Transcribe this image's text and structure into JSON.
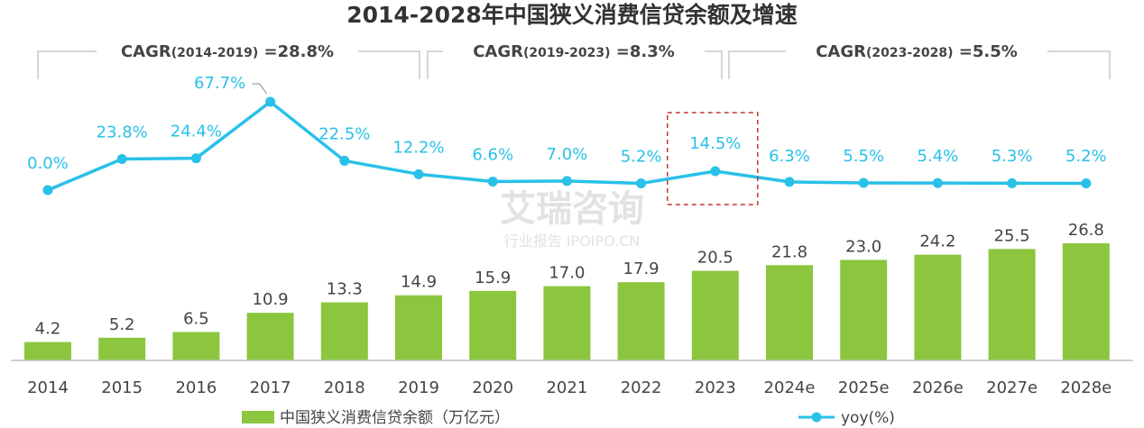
{
  "chart_data": {
    "type": "bar",
    "title": "2014-2028年中国狭义消费信贷余额及增速",
    "categories": [
      "2014",
      "2015",
      "2016",
      "2017",
      "2018",
      "2019",
      "2020",
      "2021",
      "2022",
      "2023",
      "2024e",
      "2025e",
      "2026e",
      "2027e",
      "2028e"
    ],
    "series": [
      {
        "name": "中国狭义消费信贷余额（万亿元）",
        "type": "bar",
        "values": [
          4.2,
          5.2,
          6.5,
          10.9,
          13.3,
          14.9,
          15.9,
          17.0,
          17.9,
          20.5,
          21.8,
          23.0,
          24.2,
          25.5,
          26.8
        ],
        "labels": [
          "4.2",
          "5.2",
          "6.5",
          "10.9",
          "13.3",
          "14.9",
          "15.9",
          "17.0",
          "17.9",
          "20.5",
          "21.8",
          "23.0",
          "24.2",
          "25.5",
          "26.8"
        ],
        "color": "#8cc63f"
      },
      {
        "name": "yoy(%)",
        "type": "line",
        "values": [
          0.0,
          23.8,
          24.4,
          67.7,
          22.5,
          12.2,
          6.6,
          7.0,
          5.2,
          14.5,
          6.3,
          5.5,
          5.4,
          5.3,
          5.2
        ],
        "labels": [
          "0.0%",
          "23.8%",
          "24.4%",
          "67.7%",
          "22.5%",
          "12.2%",
          "6.6%",
          "7.0%",
          "5.2%",
          "14.5%",
          "6.3%",
          "5.5%",
          "5.4%",
          "5.3%",
          "5.2%"
        ],
        "color": "#29c1e8"
      }
    ],
    "cagr": [
      {
        "main": "CAGR",
        "period": "(2014-2019)",
        "value": " =28.8%",
        "from_index": 0,
        "to_index": 5
      },
      {
        "main": "CAGR",
        "period": "(2019-2023)",
        "value": " =8.3%",
        "from_index": 5,
        "to_index": 9
      },
      {
        "main": "CAGR",
        "period": "(2023-2028)",
        "value": " =5.5%",
        "from_index": 9,
        "to_index": 14
      }
    ],
    "highlight_index": 9,
    "legend_position": "bottom",
    "grid": false
  },
  "watermark": {
    "main": "艾瑞咨询",
    "sub": "行业报告 IPOIPO.CN"
  }
}
